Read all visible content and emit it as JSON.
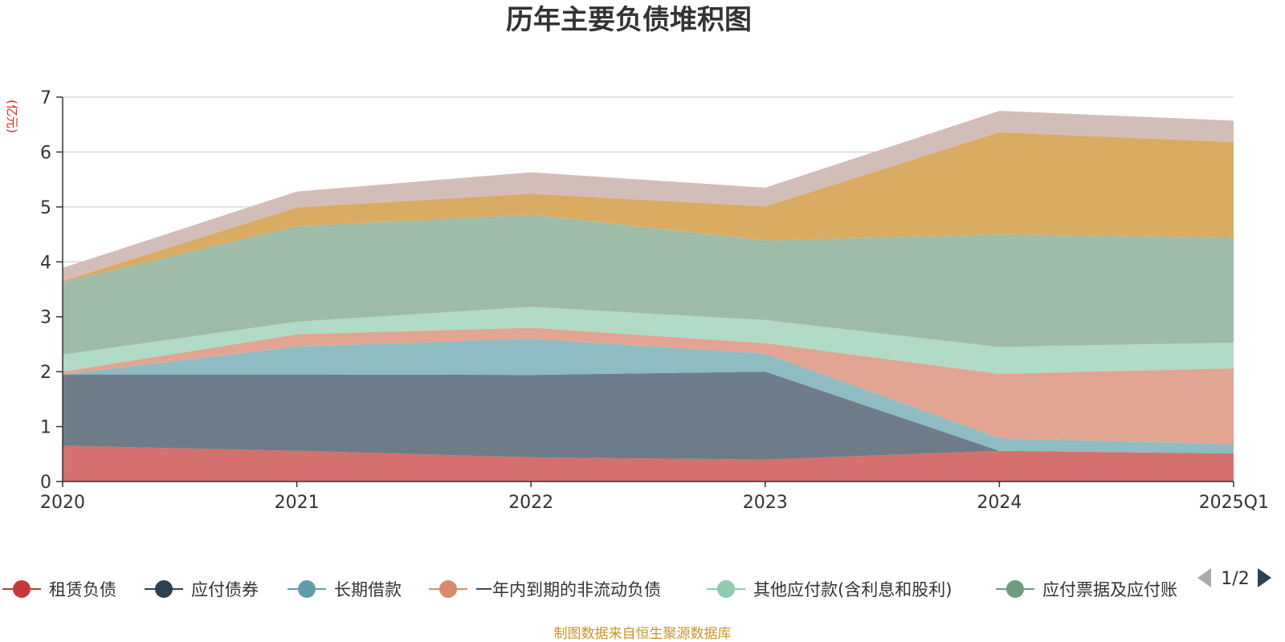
{
  "chart_data": {
    "type": "area",
    "stacked": true,
    "title": "历年主要负债堆积图",
    "ylabel": "(亿元)",
    "xlabel": "",
    "categories": [
      "2020",
      "2021",
      "2022",
      "2023",
      "2024",
      "2025Q1"
    ],
    "ylim": [
      0,
      7
    ],
    "yticks": [
      "0",
      "1",
      "2",
      "3",
      "4",
      "5",
      "6",
      "7"
    ],
    "grid": true,
    "series": [
      {
        "name": "租赁负债",
        "color": "#d4706d",
        "values": [
          0.65,
          0.56,
          0.44,
          0.4,
          0.56,
          0.51
        ]
      },
      {
        "name": "应付债券",
        "color": "#6e7c89",
        "values": [
          1.3,
          1.39,
          1.5,
          1.6,
          0,
          0
        ]
      },
      {
        "name": "长期借款",
        "color": "#8ebcc2",
        "values": [
          0,
          0.51,
          0.66,
          0.33,
          0.23,
          0.17
        ]
      },
      {
        "name": "一年内到期的非流动负债",
        "color": "#e1a591",
        "values": [
          0.05,
          0.22,
          0.2,
          0.19,
          1.17,
          1.38
        ]
      },
      {
        "name": "其他应付款(含利息和股利)",
        "color": "#b1dac7",
        "values": [
          0.31,
          0.23,
          0.38,
          0.42,
          0.49,
          0.47
        ]
      },
      {
        "name": "应付票据及应付账款",
        "color": "#9ebba7",
        "values": [
          1.32,
          1.74,
          1.68,
          1.45,
          2.05,
          1.91
        ]
      },
      {
        "name": "",
        "color": "#d9aa62",
        "values": [
          0.02,
          0.34,
          0.38,
          0.62,
          1.86,
          1.74
        ]
      },
      {
        "name": "",
        "color": "#d3bdb8",
        "values": [
          0.24,
          0.29,
          0.39,
          0.34,
          0.39,
          0.39
        ]
      }
    ],
    "legend": {
      "position": "bottom",
      "visible_items": [
        "租赁负债",
        "应付债券",
        "长期借款",
        "一年内到期的非流动负债",
        "其他应付款(含利息和股利)",
        "应付票据及应付账"
      ],
      "marker_colors": [
        "#c43a3a",
        "#2e4153",
        "#5f9ea8",
        "#d98a6c",
        "#8fcbb0",
        "#6e9c7d"
      ],
      "page": "1/2"
    },
    "source": "制图数据来自恒生聚源数据库"
  }
}
